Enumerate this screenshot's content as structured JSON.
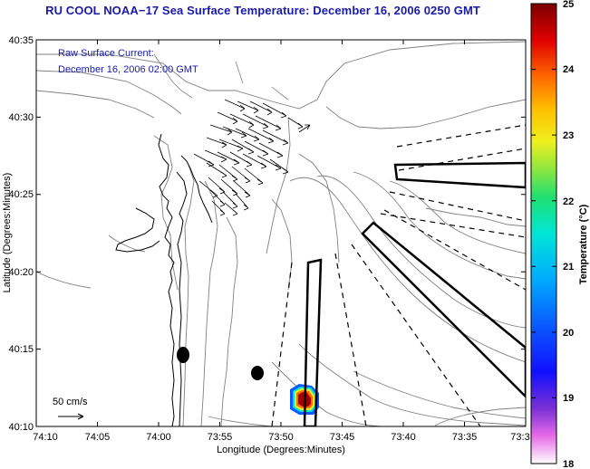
{
  "title": "RU COOL  NOAA−17  Sea Surface Temperature:  December 16, 2006 0250 GMT",
  "annotation": {
    "line1": "Raw Surface Current:",
    "line2": "December 16, 2006 02:00 GMT"
  },
  "scale_label": "50 cm/s",
  "axes": {
    "xlabel": "Longitude (Degrees:Minutes)",
    "ylabel": "Latitude (Degrees:Minutes)",
    "xticks": [
      "74:10",
      "74:05",
      "74:00",
      "73:55",
      "73:50",
      "73:45",
      "73:40",
      "73:35",
      "73:3"
    ],
    "yticks": [
      "40:35",
      "40:30",
      "40:25",
      "40:20",
      "40:15",
      "40:10"
    ]
  },
  "colorbar": {
    "label": "Temperature (°C)",
    "ticks": [
      "25",
      "24",
      "23",
      "22",
      "21",
      "20",
      "19",
      "18"
    ],
    "min": 18,
    "max": 25
  },
  "colors": {
    "title": "#1a1aa8",
    "contour": "#808080",
    "coast": "#000000"
  }
}
